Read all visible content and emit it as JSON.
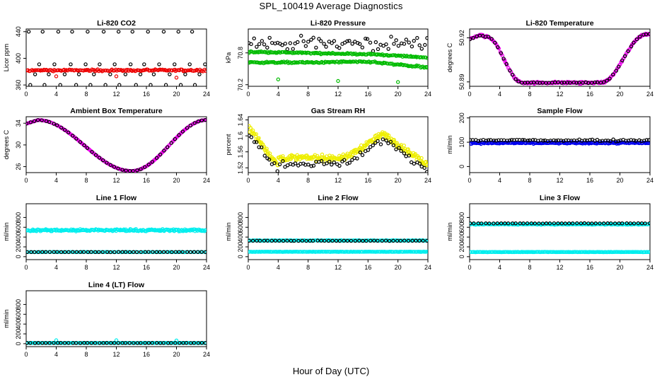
{
  "figure": {
    "title": "SPL_100419  Average Diagnostics",
    "xlabel": "Hour of Day (UTC)"
  },
  "colors": {
    "black": "#000000",
    "red": "#ee0000",
    "green": "#00bb00",
    "magenta": "#ee00ee",
    "yellow": "#eeee00",
    "blue": "#0000ee",
    "cyan": "#00eeee"
  },
  "chart_data": [
    {
      "id": "co2",
      "type": "scatter",
      "title": "Li-820 CO2",
      "ylabel": "Licor ppm",
      "xlim": [
        0,
        24
      ],
      "ylim": [
        358,
        444
      ],
      "xticks": [
        0,
        4,
        8,
        12,
        16,
        20,
        24
      ],
      "yticks": [
        360,
        400,
        440
      ],
      "series": [
        {
          "name": "co2-black",
          "color": "black",
          "gen": "levels",
          "levels": [
            360,
            376,
            391,
            440
          ],
          "offsets": [
            0.5,
            1.1,
            1.8,
            0.2
          ],
          "step": 2.0
        },
        {
          "name": "co2-red",
          "color": "red",
          "gen": "band",
          "fn": "flat",
          "base": 382,
          "noise": 2.5,
          "n": 150
        },
        {
          "name": "co2-red-out",
          "color": "red",
          "gen": "points",
          "x": [
            4.0,
            12.0,
            20.0
          ],
          "y": [
            373,
            373,
            371
          ]
        }
      ]
    },
    {
      "id": "pressure",
      "type": "scatter",
      "title": "Li-820 Pressure",
      "ylabel": "kPa",
      "xlim": [
        0,
        24
      ],
      "ylim": [
        70.17,
        71.25
      ],
      "xticks": [
        0,
        4,
        8,
        12,
        16,
        20,
        24
      ],
      "yticks": [
        70.2,
        70.8
      ],
      "series": [
        {
          "name": "pressure-black",
          "color": "black",
          "gen": "band",
          "fn": "flat",
          "base": 70.98,
          "noise": 0.22,
          "n": 70
        },
        {
          "name": "pressure-green-upper",
          "color": "green",
          "gen": "band",
          "fn": "pres_hi",
          "noise": 0.025,
          "n": 160
        },
        {
          "name": "pressure-green-lower",
          "color": "green",
          "gen": "band",
          "fn": "pres_lo",
          "noise": 0.025,
          "n": 160
        },
        {
          "name": "pressure-green-out",
          "color": "green",
          "gen": "points",
          "x": [
            4.0,
            12.0,
            20.0
          ],
          "y": [
            70.3,
            70.27,
            70.25
          ]
        }
      ]
    },
    {
      "id": "licor-temp",
      "type": "scatter",
      "title": "Li-820 Temperature",
      "ylabel": "degrees C",
      "xlim": [
        0,
        24
      ],
      "ylim": [
        50.887,
        50.926
      ],
      "xticks": [
        0,
        4,
        8,
        12,
        16,
        20,
        24
      ],
      "yticks": [
        50.89,
        50.92
      ],
      "series": [
        {
          "name": "licor-temp-magenta",
          "color": "magenta",
          "gen": "band",
          "fn": "ltemp",
          "noise": 0.0012,
          "n": 200
        },
        {
          "name": "licor-temp-black",
          "color": "black",
          "gen": "band",
          "fn": "ltemp",
          "noise": 0.0004,
          "n": 60
        }
      ]
    },
    {
      "id": "box-temp",
      "type": "scatter",
      "title": "Ambient Box Temperature",
      "ylabel": "degrees C",
      "xlim": [
        0,
        24
      ],
      "ylim": [
        24.9,
        35.2
      ],
      "xticks": [
        0,
        4,
        8,
        12,
        16,
        20,
        24
      ],
      "yticks": [
        26,
        30,
        34
      ],
      "series": [
        {
          "name": "box-temp-magenta",
          "color": "magenta",
          "gen": "band",
          "fn": "btemp",
          "noise": 0.05,
          "n": 220
        },
        {
          "name": "box-temp-black",
          "color": "black",
          "gen": "band",
          "fn": "btemp",
          "noise": 0.02,
          "n": 48
        }
      ]
    },
    {
      "id": "rh",
      "type": "scatter",
      "title": "Gas Stream RH",
      "ylabel": "percent",
      "xlim": [
        0,
        24
      ],
      "ylim": [
        1.508,
        1.648
      ],
      "xticks": [
        0,
        4,
        8,
        12,
        16,
        20,
        24
      ],
      "yticks": [
        1.52,
        1.56,
        1.6,
        1.64
      ],
      "series": [
        {
          "name": "rh-yellow",
          "color": "yellow",
          "gen": "band",
          "fn": "rh",
          "noise": 0.013,
          "n": 280
        },
        {
          "name": "rh-black",
          "color": "black",
          "gen": "band",
          "fn": "rh",
          "offset": -0.014,
          "noise": 0.015,
          "n": 70
        }
      ]
    },
    {
      "id": "sample-flow",
      "type": "scatter",
      "title": "Sample Flow",
      "ylabel": "ml/min",
      "xlim": [
        0,
        24
      ],
      "ylim": [
        -25,
        205
      ],
      "xticks": [
        0,
        4,
        8,
        12,
        16,
        20,
        24
      ],
      "yticks": [
        0,
        100,
        200
      ],
      "series": [
        {
          "name": "sample-flow-blue",
          "color": "blue",
          "gen": "band",
          "fn": "flat",
          "base": 97,
          "noise": 5,
          "n": 200
        },
        {
          "name": "sample-flow-black",
          "color": "black",
          "gen": "band",
          "fn": "flat",
          "base": 108,
          "noise": 7,
          "n": 70
        }
      ]
    },
    {
      "id": "line1",
      "type": "scatter",
      "title": "Line 1 Flow",
      "ylabel": "ml/min",
      "xlim": [
        0,
        24
      ],
      "ylim": [
        -60,
        1080
      ],
      "xticks": [
        0,
        4,
        8,
        12,
        16,
        20,
        24
      ],
      "yticks": [
        0,
        200,
        400,
        600,
        800
      ],
      "series": [
        {
          "name": "line1-cyan-high",
          "color": "cyan",
          "gen": "band",
          "fn": "flat",
          "base": 540,
          "noise": 40,
          "n": 220
        },
        {
          "name": "line1-cyan-low",
          "color": "cyan",
          "gen": "band",
          "fn": "flat",
          "base": 95,
          "noise": 6,
          "n": 100
        },
        {
          "name": "line1-black",
          "color": "black",
          "gen": "band",
          "fn": "flat",
          "base": 95,
          "noise": 4,
          "n": 48
        }
      ]
    },
    {
      "id": "line2",
      "type": "scatter",
      "title": "Line 2 Flow",
      "ylabel": "ml/min",
      "xlim": [
        0,
        24
      ],
      "ylim": [
        -60,
        1080
      ],
      "xticks": [
        0,
        4,
        8,
        12,
        16,
        20,
        24
      ],
      "yticks": [
        0,
        200,
        400,
        600,
        800
      ],
      "series": [
        {
          "name": "line2-cyan-high",
          "color": "cyan",
          "gen": "band",
          "fn": "flat",
          "base": 330,
          "noise": 12,
          "n": 200
        },
        {
          "name": "line2-cyan-low",
          "color": "cyan",
          "gen": "band",
          "fn": "flat",
          "base": 100,
          "noise": 6,
          "n": 200
        },
        {
          "name": "line2-black",
          "color": "black",
          "gen": "band",
          "fn": "flat",
          "base": 325,
          "noise": 5,
          "n": 48
        }
      ]
    },
    {
      "id": "line3",
      "type": "scatter",
      "title": "Line 3 Flow",
      "ylabel": "ml/min",
      "xlim": [
        0,
        24
      ],
      "ylim": [
        -60,
        1080
      ],
      "xticks": [
        0,
        4,
        8,
        12,
        16,
        20,
        24
      ],
      "yticks": [
        0,
        200,
        400,
        600,
        800
      ],
      "series": [
        {
          "name": "line3-cyan-high",
          "color": "cyan",
          "gen": "band",
          "fn": "flat",
          "base": 660,
          "noise": 15,
          "n": 200
        },
        {
          "name": "line3-cyan-low",
          "color": "cyan",
          "gen": "band",
          "fn": "flat",
          "base": 95,
          "noise": 6,
          "n": 200
        },
        {
          "name": "line3-black",
          "color": "black",
          "gen": "band",
          "fn": "flat",
          "base": 680,
          "noise": 5,
          "n": 48
        }
      ]
    },
    {
      "id": "line4",
      "type": "scatter",
      "title": "Line 4 (LT) Flow",
      "ylabel": "ml/min",
      "xlim": [
        0,
        24
      ],
      "ylim": [
        -60,
        1080
      ],
      "xticks": [
        0,
        4,
        8,
        12,
        16,
        20,
        24
      ],
      "yticks": [
        0,
        200,
        400,
        600,
        800
      ],
      "series": [
        {
          "name": "line4-cyan",
          "color": "cyan",
          "gen": "band",
          "fn": "flat",
          "base": 15,
          "noise": 4,
          "n": 180
        },
        {
          "name": "line4-cyan-out",
          "color": "cyan",
          "gen": "points",
          "x": [
            4.0,
            12.0,
            20.0
          ],
          "y": [
            70,
            70,
            65
          ]
        },
        {
          "name": "line4-black",
          "color": "black",
          "gen": "band",
          "fn": "flat",
          "base": 15,
          "noise": 3,
          "n": 48
        }
      ]
    }
  ]
}
